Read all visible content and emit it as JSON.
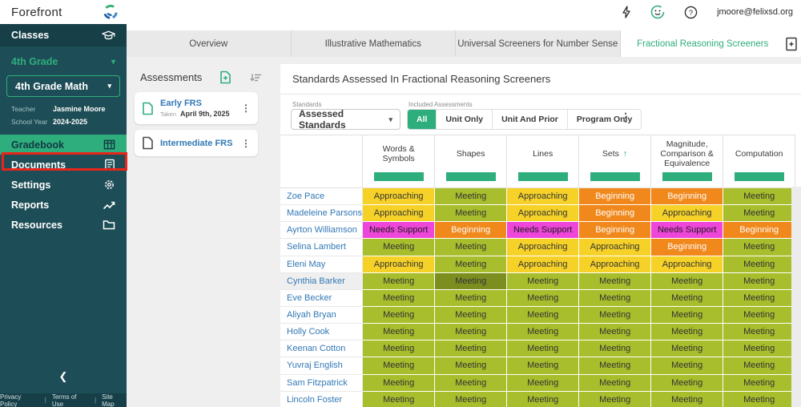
{
  "app": {
    "brand": "Forefront",
    "user_email": "jmoore@felixsd.org"
  },
  "colors": {
    "accent_green": "#2fae7d",
    "sidebar_bg": "#1d4d56",
    "sidebar_dark": "#173f48",
    "meeting": "#a8be2c",
    "meeting_selected": "#7d8e20",
    "approaching": "#f6d229",
    "beginning": "#f0881c",
    "needs_support": "#ee46da",
    "link_blue": "#3278b5",
    "annotation_red": "#e8251c"
  },
  "sidebar": {
    "classes_label": "Classes",
    "grade_label": "4th Grade",
    "class_selector_value": "4th Grade Math",
    "teacher_label": "Teacher",
    "teacher_name": "Jasmine Moore",
    "school_year_label": "School Year",
    "school_year_value": "2024-2025",
    "nav": [
      {
        "label": "Gradebook",
        "icon": "grid-icon",
        "active": true
      },
      {
        "label": "Documents",
        "icon": "document-icon",
        "annotated": true
      },
      {
        "label": "Settings",
        "icon": "gear-icon"
      },
      {
        "label": "Reports",
        "icon": "chart-icon"
      },
      {
        "label": "Resources",
        "icon": "folder-icon"
      }
    ],
    "footer_links": [
      "Privacy Policy",
      "Terms of Use",
      "Site Map"
    ]
  },
  "tabs": [
    {
      "label": "Overview",
      "active": false
    },
    {
      "label": "Illustrative Mathematics",
      "active": false
    },
    {
      "label": "Universal Screeners for Number Sense",
      "active": false
    },
    {
      "label": "Fractional Reasoning Screeners",
      "active": true
    }
  ],
  "assessments": {
    "title": "Assessments",
    "items": [
      {
        "name": "Early FRS",
        "icon": "document-icon-green",
        "taken_label": "Taken",
        "taken_date": "April 9th, 2025"
      },
      {
        "name": "Intermediate FRS",
        "icon": "document-icon-dark",
        "taken_label": "",
        "taken_date": ""
      }
    ]
  },
  "main": {
    "title": "Standards Assessed In Fractional Reasoning Screeners",
    "standards_label": "Standards",
    "standards_value": "Assessed Standards",
    "included_label": "Included Assessments",
    "filter_buttons": [
      {
        "label": "All",
        "active": true
      },
      {
        "label": "Unit Only",
        "active": false
      },
      {
        "label": "Unit And Prior",
        "active": false
      },
      {
        "label": "Program Only",
        "active": false
      }
    ]
  },
  "table": {
    "columns": [
      "Words & Symbols",
      "Shapes",
      "Lines",
      "Sets",
      "Magnitude, Comparison & Equivalence",
      "Computation"
    ],
    "sorted_column": "Sets",
    "highlighted_student": "Cynthia Barker",
    "selected_cell": {
      "student": "Cynthia Barker",
      "column": "Shapes"
    },
    "rows": [
      {
        "student": "Zoe Pace",
        "values": [
          "Approaching",
          "Meeting",
          "Approaching",
          "Beginning",
          "Beginning",
          "Meeting"
        ]
      },
      {
        "student": "Madeleine Parsons",
        "values": [
          "Approaching",
          "Meeting",
          "Approaching",
          "Beginning",
          "Approaching",
          "Meeting"
        ]
      },
      {
        "student": "Ayrton Williamson",
        "values": [
          "Needs Support",
          "Beginning",
          "Needs Support",
          "Beginning",
          "Needs Support",
          "Beginning"
        ]
      },
      {
        "student": "Selina Lambert",
        "values": [
          "Meeting",
          "Meeting",
          "Approaching",
          "Approaching",
          "Beginning",
          "Meeting"
        ]
      },
      {
        "student": "Eleni May",
        "values": [
          "Approaching",
          "Meeting",
          "Approaching",
          "Approaching",
          "Approaching",
          "Meeting"
        ]
      },
      {
        "student": "Cynthia Barker",
        "values": [
          "Meeting",
          "Meeting",
          "Meeting",
          "Meeting",
          "Meeting",
          "Meeting"
        ]
      },
      {
        "student": "Eve Becker",
        "values": [
          "Meeting",
          "Meeting",
          "Meeting",
          "Meeting",
          "Meeting",
          "Meeting"
        ]
      },
      {
        "student": "Aliyah Bryan",
        "values": [
          "Meeting",
          "Meeting",
          "Meeting",
          "Meeting",
          "Meeting",
          "Meeting"
        ]
      },
      {
        "student": "Holly Cook",
        "values": [
          "Meeting",
          "Meeting",
          "Meeting",
          "Meeting",
          "Meeting",
          "Meeting"
        ]
      },
      {
        "student": "Keenan Cotton",
        "values": [
          "Meeting",
          "Meeting",
          "Meeting",
          "Meeting",
          "Meeting",
          "Meeting"
        ]
      },
      {
        "student": "Yuvraj English",
        "values": [
          "Meeting",
          "Meeting",
          "Meeting",
          "Meeting",
          "Meeting",
          "Meeting"
        ]
      },
      {
        "student": "Sam Fitzpatrick",
        "values": [
          "Meeting",
          "Meeting",
          "Meeting",
          "Meeting",
          "Meeting",
          "Meeting"
        ]
      },
      {
        "student": "Lincoln Foster",
        "values": [
          "Meeting",
          "Meeting",
          "Meeting",
          "Meeting",
          "Meeting",
          "Meeting"
        ]
      }
    ]
  }
}
